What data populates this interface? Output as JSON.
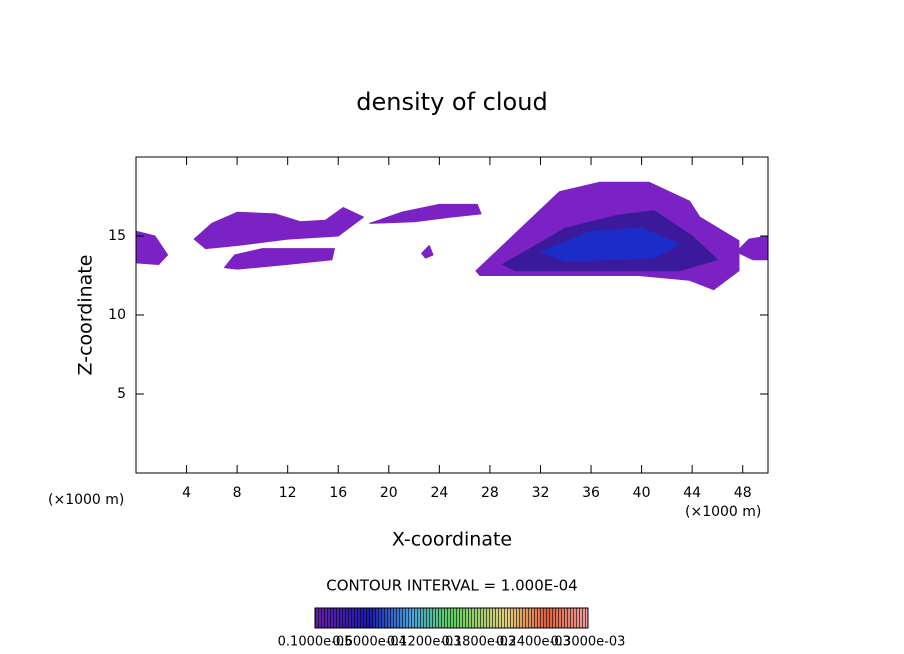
{
  "chart_data": {
    "type": "contour",
    "title": "density of cloud",
    "x_label": "X-coordinate",
    "y_label": "Z-coordinate",
    "x_unit": "(×1000 m)",
    "y_unit": "(×1000 m)",
    "xlim": [
      0,
      50
    ],
    "ylim": [
      0,
      20
    ],
    "xticks": [
      4,
      8,
      12,
      16,
      20,
      24,
      28,
      32,
      36,
      40,
      44,
      48
    ],
    "yticks": [
      5,
      10,
      15
    ],
    "annotation": "CONTOUR INTERVAL = 1.000E-04",
    "colorbar_labels": [
      "0.1000e-05",
      "0.6000e-04",
      "0.1200e-03",
      "0.1800e-03",
      "0.2400e-03",
      "0.3000e-03"
    ],
    "regions": [
      {
        "color": "#7a22c4",
        "x": [
          26.9,
          33.5,
          36.7,
          40.6,
          43.8,
          44.6,
          47.7,
          47.7,
          45.7,
          43.8,
          39.8,
          27.2
        ],
        "y": [
          12.8,
          17.8,
          18.4,
          18.4,
          17.2,
          16.2,
          14.7,
          12.8,
          11.6,
          12.2,
          12.5,
          12.5
        ]
      },
      {
        "color": "#3a1a9a",
        "x": [
          29,
          34,
          38,
          41,
          44,
          46,
          43,
          30
        ],
        "y": [
          13.2,
          15.5,
          16.3,
          16.6,
          15,
          13.5,
          12.8,
          12.8
        ]
      },
      {
        "color": "#1c2cc8",
        "x": [
          32,
          36,
          40,
          43,
          41,
          34
        ],
        "y": [
          14,
          15.3,
          15.5,
          14.5,
          13.6,
          13.4
        ]
      },
      {
        "color": "#7a22c4",
        "x": [
          0,
          1.5,
          2.5,
          1.8,
          0
        ],
        "y": [
          15.3,
          15,
          13.8,
          13.2,
          13.3
        ]
      },
      {
        "color": "#7a22c4",
        "x": [
          50,
          48.5,
          47.5,
          48.8,
          50
        ],
        "y": [
          15,
          14.8,
          14,
          13.5,
          13.5
        ]
      },
      {
        "color": "#7a22c4",
        "x": [
          4.6,
          6,
          8,
          11,
          13,
          15,
          16.4,
          18,
          16,
          12,
          8,
          5.5
        ],
        "y": [
          14.8,
          15.8,
          16.5,
          16.4,
          15.9,
          16,
          16.8,
          16.2,
          15,
          14.8,
          14.4,
          14.2
        ]
      },
      {
        "color": "#7a22c4",
        "x": [
          7,
          7.8,
          10,
          15.7,
          15.5,
          12,
          8
        ],
        "y": [
          13,
          13.8,
          14.2,
          14.2,
          13.5,
          13.2,
          12.9
        ]
      },
      {
        "color": "#7a22c4",
        "x": [
          18.5,
          21,
          24,
          27,
          27.3,
          25,
          22
        ],
        "y": [
          15.8,
          16.5,
          17,
          17,
          16.4,
          16.2,
          15.9
        ]
      },
      {
        "color": "#7a22c4",
        "x": [
          22.6,
          23.2,
          23.5,
          22.9
        ],
        "y": [
          13.9,
          14.4,
          13.8,
          13.6
        ]
      }
    ]
  }
}
